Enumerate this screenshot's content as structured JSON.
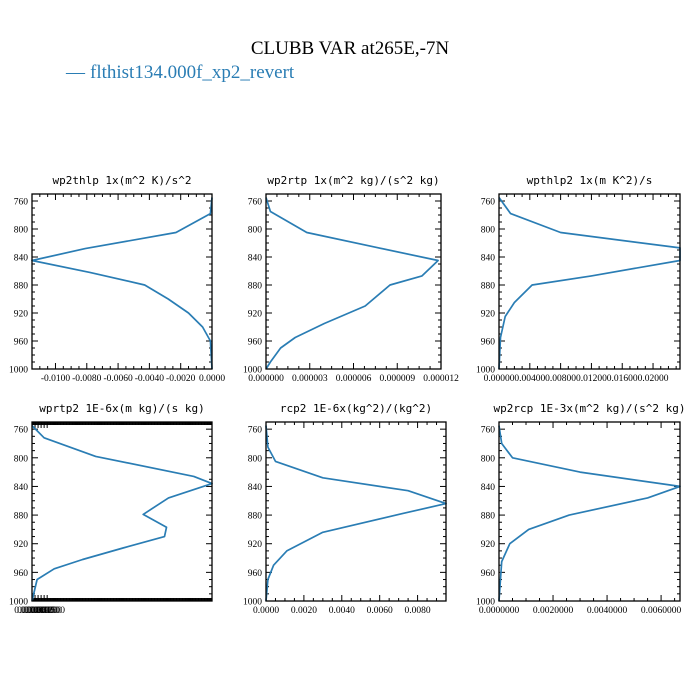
{
  "figure": {
    "title": "CLUBB VAR at265E,-7N",
    "legend": {
      "dash": "—",
      "label": "flthist134.000f_xp2_revert",
      "color": "#2a7db4"
    }
  },
  "chart_data": [
    {
      "type": "line",
      "title": "wp2thlp  1x(m^2 K)/s^2",
      "ylim": [
        1000,
        750
      ],
      "y_ticks": [
        "760",
        "800",
        "840",
        "880",
        "920",
        "960",
        "1000"
      ],
      "y_tick_values": [
        760,
        800,
        840,
        880,
        920,
        960,
        1000
      ],
      "xlim": [
        -0.0115,
        0.0
      ],
      "x_ticks": [
        "-0.0100",
        "-0.0080",
        "-0.0060",
        "-0.0040",
        "-0.0020",
        "0.0000"
      ],
      "x_tick_values": [
        -0.01,
        -0.008,
        -0.006,
        -0.004,
        -0.002,
        0.0
      ],
      "series": [
        {
          "color": "#2a7db4",
          "x": [
            0.0,
            -0.0001,
            -0.0023,
            -0.0081,
            -0.0115,
            -0.0078,
            -0.0043,
            -0.0028,
            -0.0015,
            -0.0006,
            -0.0001,
            0.0
          ],
          "y": [
            755,
            778,
            805,
            828,
            845,
            862,
            880,
            900,
            920,
            940,
            960,
            1000
          ]
        }
      ]
    },
    {
      "type": "line",
      "title": "wp2rtp  1x(m^2 kg)/(s^2 kg)",
      "ylim": [
        1000,
        750
      ],
      "y_ticks": [
        "760",
        "800",
        "840",
        "880",
        "920",
        "960",
        "1000"
      ],
      "y_tick_values": [
        760,
        800,
        840,
        880,
        920,
        960,
        1000
      ],
      "xlim": [
        0.0,
        1.2e-05
      ],
      "x_ticks": [
        "0.000000",
        "0.000003",
        "0.000006",
        "0.000009",
        "0.000012"
      ],
      "x_tick_values": [
        0.0,
        3e-06,
        6e-06,
        9e-06,
        1.2e-05
      ],
      "series": [
        {
          "color": "#2a7db4",
          "x": [
            0.0,
            3e-07,
            2.8e-06,
            7.5e-06,
            1.18e-05,
            1.07e-05,
            8.5e-06,
            6.8e-06,
            4e-06,
            2e-06,
            1e-06,
            3e-07,
            0.0
          ],
          "y": [
            755,
            775,
            805,
            826,
            845,
            867,
            880,
            910,
            935,
            955,
            970,
            990,
            1000
          ]
        }
      ]
    },
    {
      "type": "line",
      "title": "wpthlp2  1x(m K^2)/s",
      "ylim": [
        1000,
        750
      ],
      "y_ticks": [
        "760",
        "800",
        "840",
        "880",
        "920",
        "960",
        "1000"
      ],
      "y_tick_values": [
        760,
        800,
        840,
        880,
        920,
        960,
        1000
      ],
      "xlim": [
        0.0,
        0.0235
      ],
      "x_ticks": [
        "0.00000",
        "0.00400",
        "0.00800",
        "0.01200",
        "0.01600",
        "0.02000"
      ],
      "x_tick_values": [
        0.0,
        0.004,
        0.008,
        0.012,
        0.016,
        0.02
      ],
      "series": [
        {
          "color": "#2a7db4",
          "x": [
            0.0,
            0.0015,
            0.008,
            0.0235,
            0.0235,
            0.012,
            0.0043,
            0.002,
            0.0008,
            0.0002,
            0.0
          ],
          "y": [
            755,
            778,
            805,
            827,
            845,
            867,
            880,
            905,
            925,
            955,
            1000
          ]
        }
      ]
    },
    {
      "type": "line",
      "title": "wprtp2  1E-6x(m kg)/(s kg)",
      "ylim": [
        1000,
        750
      ],
      "y_ticks": [
        "760",
        "800",
        "840",
        "880",
        "920",
        "960",
        "1000"
      ],
      "y_tick_values": [
        760,
        800,
        840,
        880,
        920,
        960,
        1000
      ],
      "xlim": [
        0.0,
        0.0178
      ],
      "x_ticks": [
        "0.000000",
        "0.000300",
        "0.000600",
        "0.000900",
        "0.001200",
        "0.001500"
      ],
      "x_tick_values": [
        0.0,
        0.0003,
        0.0006,
        0.0009,
        0.0012,
        0.0015
      ],
      "series": [
        {
          "color": "#2a7db4",
          "x": [
            0.0,
            0.0012,
            0.0063,
            0.016,
            0.0178,
            0.0135,
            0.011,
            0.0133,
            0.0131,
            0.009,
            0.005,
            0.0022,
            0.0005,
            0.0
          ],
          "y": [
            755,
            772,
            798,
            826,
            836,
            856,
            879,
            897,
            910,
            926,
            942,
            955,
            970,
            1000
          ]
        }
      ]
    },
    {
      "type": "line",
      "title": "rcp2  1E-6x(kg^2)/(kg^2)",
      "ylim": [
        1000,
        750
      ],
      "y_ticks": [
        "760",
        "800",
        "840",
        "880",
        "920",
        "960",
        "1000"
      ],
      "y_tick_values": [
        760,
        800,
        840,
        880,
        920,
        960,
        1000
      ],
      "xlim": [
        0.0,
        0.0095
      ],
      "x_ticks": [
        "0.0000",
        "0.0020",
        "0.0040",
        "0.0060",
        "0.0080"
      ],
      "x_tick_values": [
        0.0,
        0.002,
        0.004,
        0.006,
        0.008
      ],
      "series": [
        {
          "color": "#2a7db4",
          "x": [
            0.0,
            0.0001,
            0.0005,
            0.003,
            0.0075,
            0.0095,
            0.0072,
            0.003,
            0.0011,
            0.0004,
            0.0001,
            0.0
          ],
          "y": [
            755,
            785,
            805,
            828,
            846,
            864,
            878,
            904,
            930,
            950,
            970,
            1000
          ]
        }
      ]
    },
    {
      "type": "line",
      "title": "wp2rcp  1E-3x(m^2 kg)/(s^2 kg)",
      "ylim": [
        1000,
        750
      ],
      "y_ticks": [
        "760",
        "800",
        "840",
        "880",
        "920",
        "960",
        "1000"
      ],
      "y_tick_values": [
        760,
        800,
        840,
        880,
        920,
        960,
        1000
      ],
      "xlim": [
        0.0,
        0.0067
      ],
      "x_ticks": [
        "0.0000000",
        "0.0020000",
        "0.0040000",
        "0.0060000"
      ],
      "x_tick_values": [
        0.0,
        0.002,
        0.004,
        0.006
      ],
      "series": [
        {
          "color": "#2a7db4",
          "x": [
            0.0,
            0.0001,
            0.0005,
            0.003,
            0.0067,
            0.0055,
            0.0026,
            0.0011,
            0.0004,
            0.0001,
            0.0
          ],
          "y": [
            755,
            780,
            800,
            820,
            840,
            856,
            880,
            900,
            920,
            945,
            1000
          ]
        }
      ]
    }
  ]
}
